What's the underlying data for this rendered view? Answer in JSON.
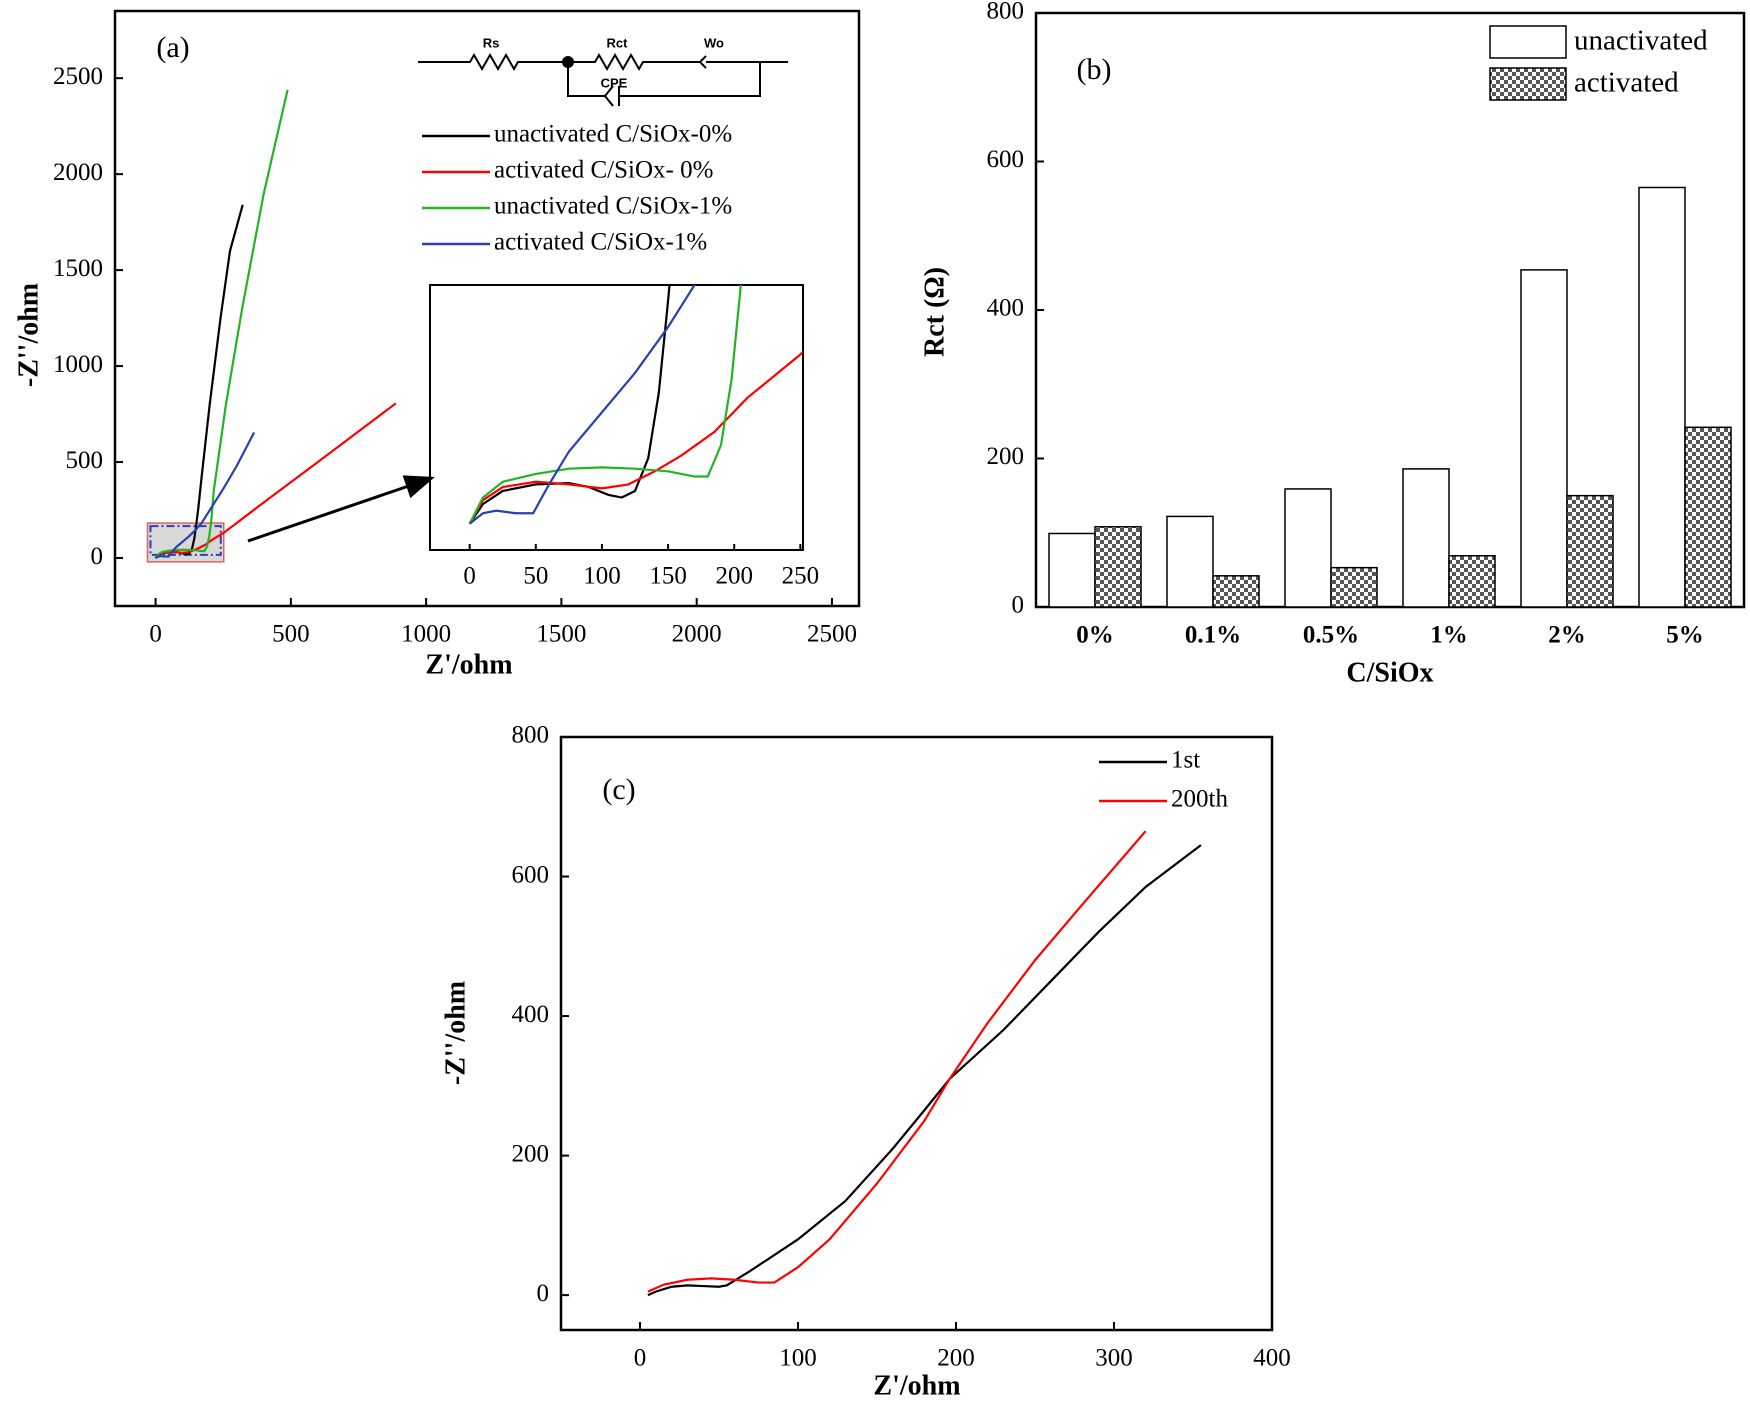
{
  "chart_data": [
    {
      "type": "line",
      "label": "(a)",
      "xlabel": "Z'/ohm",
      "ylabel": "-Z''/ohm",
      "xlim": [
        -150,
        2600
      ],
      "ylim": [
        -250,
        2850
      ],
      "xticks": [
        0,
        500,
        1000,
        1500,
        2000,
        2500
      ],
      "yticks": [
        0,
        500,
        1000,
        1500,
        2000,
        2500
      ],
      "circuit_labels": [
        "Rs",
        "Rct",
        "Wo",
        "CPE"
      ],
      "series": [
        {
          "name": "unactivated C/SiOx-0%",
          "color": "#000000",
          "x": [
            0,
            10,
            25,
            50,
            75,
            90,
            105,
            115,
            125,
            135,
            143,
            150,
            158,
            170,
            200,
            240,
            275,
            322
          ],
          "values": [
            0,
            15,
            25,
            30,
            31,
            28,
            22,
            20,
            25,
            50,
            100,
            170,
            260,
            420,
            800,
            1250,
            1600,
            1840
          ]
        },
        {
          "name": "activated C/SiOx- 0%",
          "color": "#ff0000",
          "x": [
            0,
            10,
            25,
            50,
            75,
            100,
            120,
            140,
            160,
            185,
            210,
            250,
            400,
            600,
            888
          ],
          "values": [
            0,
            18,
            28,
            32,
            30,
            27,
            30,
            40,
            52,
            70,
            96,
            129,
            290,
            500,
            806
          ]
        },
        {
          "name": "unactivated  C/SiOx-1%",
          "color": "#22b422",
          "x": [
            0,
            10,
            25,
            50,
            75,
            100,
            125,
            150,
            170,
            180,
            190,
            198,
            205,
            215,
            260,
            320,
            400,
            488
          ],
          "values": [
            0,
            20,
            32,
            38,
            42,
            43,
            42,
            40,
            36,
            36,
            60,
            110,
            182,
            350,
            800,
            1300,
            1900,
            2440
          ]
        },
        {
          "name": "activated C/SiOx-1%",
          "color": "#2b3fb0",
          "x": [
            0,
            10,
            20,
            35,
            48,
            60,
            75,
            100,
            125,
            150,
            170,
            250,
            300,
            364
          ],
          "values": [
            0,
            8,
            10,
            8,
            8,
            30,
            55,
            85,
            115,
            150,
            182,
            360,
            480,
            654
          ]
        }
      ],
      "inset": {
        "xlim": [
          -30,
          252
        ],
        "ylim": [
          -20,
          182
        ],
        "xticks": [
          0,
          50,
          100,
          150,
          200,
          250
        ]
      }
    },
    {
      "type": "bar",
      "label": "(b)",
      "xlabel": "C/SiOx",
      "ylabel": "Rct (Ω)",
      "categories": [
        "0%",
        "0.1%",
        "0.5%",
        "1%",
        "2%",
        "5%"
      ],
      "ylim": [
        0,
        800
      ],
      "yticks": [
        0,
        200,
        400,
        600,
        800
      ],
      "series": [
        {
          "name": "unactivated",
          "color": "#ffffff",
          "values": [
            99,
            122,
            159,
            186,
            454,
            565
          ]
        },
        {
          "name": "activated",
          "color": "#555555",
          "hatch": true,
          "values": [
            108,
            42,
            53,
            69,
            150,
            242
          ]
        }
      ]
    },
    {
      "type": "line",
      "label": "(c)",
      "xlabel": "Z'/ohm",
      "ylabel": "-Z''/ohm",
      "xlim": [
        -50,
        400
      ],
      "ylim": [
        -50,
        800
      ],
      "xticks": [
        0,
        100,
        200,
        300,
        400
      ],
      "yticks": [
        0,
        200,
        400,
        600,
        800
      ],
      "series": [
        {
          "name": "1st",
          "color": "#000000",
          "x": [
            5,
            10,
            20,
            30,
            40,
            50,
            55,
            70,
            100,
            130,
            160,
            180,
            196,
            230,
            260,
            290,
            320,
            355
          ],
          "values": [
            0,
            5,
            12,
            14,
            13,
            12,
            14,
            35,
            80,
            135,
            210,
            265,
            310,
            380,
            450,
            520,
            585,
            645
          ]
        },
        {
          "name": "200th",
          "color": "#ff0000",
          "x": [
            5,
            15,
            30,
            45,
            60,
            75,
            85,
            100,
            120,
            150,
            180,
            196,
            220,
            250,
            280,
            320
          ],
          "values": [
            5,
            15,
            22,
            24,
            22,
            18,
            18,
            40,
            80,
            160,
            250,
            310,
            390,
            480,
            560,
            665
          ]
        }
      ]
    }
  ]
}
